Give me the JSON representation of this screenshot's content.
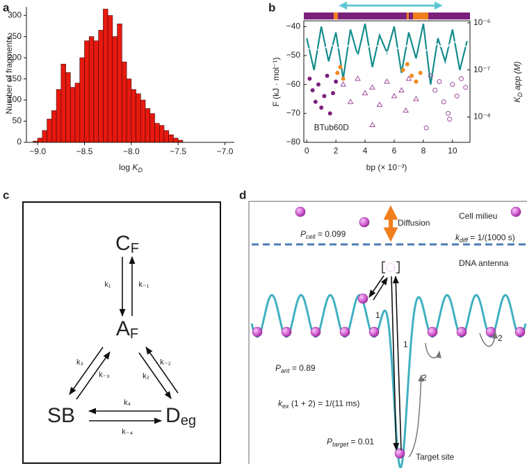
{
  "panel_labels": [
    "a",
    "b",
    "c",
    "d"
  ],
  "chart_data": [
    {
      "type": "histogram",
      "y_label": "Number of fragments",
      "x_label": {
        "text": "log ",
        "symbol": "K",
        "sub": "D"
      },
      "bins": [
        -9.05,
        -9.0,
        -8.95,
        -8.9,
        -8.85,
        -8.8,
        -8.75,
        -8.7,
        -8.65,
        -8.6,
        -8.55,
        -8.5,
        -8.45,
        -8.4,
        -8.35,
        -8.3,
        -8.25,
        -8.2,
        -8.15,
        -8.1,
        -8.05,
        -8.0,
        -7.95,
        -7.9,
        -7.85,
        -7.8,
        -7.75,
        -7.7,
        -7.65,
        -7.6,
        -7.55,
        -7.5,
        -7.45
      ],
      "counts": [
        3,
        10,
        28,
        55,
        75,
        125,
        185,
        165,
        130,
        140,
        200,
        240,
        250,
        240,
        265,
        315,
        300,
        250,
        280,
        190,
        150,
        125,
        115,
        100,
        80,
        68,
        45,
        40,
        28,
        18,
        10,
        5
      ],
      "color": "#e8190f",
      "xlim": [
        -9.12,
        -6.9
      ],
      "xticks": [
        {
          "value": -9.0,
          "label": "−9.0"
        },
        {
          "value": -8.5,
          "label": "−8.5"
        },
        {
          "value": -8.0,
          "label": "−8.0"
        },
        {
          "value": -7.5,
          "label": "−7.5"
        },
        {
          "value": -7.0,
          "label": "−7.0"
        }
      ],
      "ylim": [
        0,
        320
      ],
      "yticks": [
        0,
        50,
        100,
        150,
        200,
        250,
        300
      ]
    },
    {
      "type": "line",
      "x_label": "bp (× 10⁻³)",
      "y_label": "F (kJ · mol⁻¹)",
      "y2_label": {
        "symbol": "K",
        "sub": "D",
        "rest": " app (M)"
      },
      "annotation": "BTub60D",
      "xlim": [
        -0.2,
        11.2
      ],
      "xticks": [
        0,
        2,
        4,
        6,
        8,
        10
      ],
      "ylim": [
        -80,
        -38
      ],
      "yticks": [
        {
          "value": -40,
          "label": "−40"
        },
        {
          "value": -50,
          "label": "−50"
        },
        {
          "value": -60,
          "label": "−60"
        },
        {
          "value": -70,
          "label": "−70"
        },
        {
          "value": -80,
          "label": "−80"
        }
      ],
      "y2lim": [
        2.9e-09,
        1.1e-06
      ],
      "y2_log": true,
      "y2ticks": [
        {
          "value": 1e-06,
          "label": "10⁻⁶"
        },
        {
          "value": 1e-07,
          "label": "10⁻⁷"
        },
        {
          "value": 1e-08,
          "label": "10⁻⁸"
        }
      ],
      "series": [
        {
          "mark": "line",
          "color": "#138c8a",
          "x": [
            0,
            0.5,
            1,
            1.5,
            2,
            2.5,
            3,
            3.5,
            4,
            4.5,
            5,
            5.5,
            6,
            6.5,
            7,
            7.5,
            8,
            8.5,
            9,
            9.5,
            10,
            10.5,
            11
          ],
          "values": [
            -44,
            -55,
            -40,
            -52,
            -42,
            -58,
            -41,
            -50,
            -39,
            -54,
            -43,
            -49,
            -40,
            -56,
            -42,
            -51,
            -39,
            -60,
            -44,
            -52,
            -41,
            -55,
            -45
          ]
        },
        {
          "mark": "line",
          "color": "#ffffff",
          "x": [
            0,
            0.5,
            1,
            1.5,
            2,
            2.5,
            3,
            3.5,
            4,
            4.5,
            5,
            5.5,
            6,
            6.5,
            7,
            7.5,
            8,
            8.5,
            9,
            9.5,
            10,
            10.5,
            11
          ],
          "values": [
            -48,
            -47,
            -49,
            -46,
            -47,
            -48,
            -46,
            -50,
            -48,
            -46,
            -47,
            -49,
            -47,
            -48,
            -46,
            -52,
            -49,
            -47,
            -46,
            -48,
            -45,
            -46,
            -47
          ]
        },
        {
          "mark": "circle",
          "color": "#7b1f7b",
          "x": [
            0.2,
            0.4,
            0.6,
            0.8,
            1.0,
            1.2,
            1.4,
            1.6,
            1.8,
            2.0
          ],
          "values": [
            -58,
            -62,
            -66,
            -60,
            -68,
            -64,
            -57,
            -70,
            -63,
            -59
          ]
        },
        {
          "mark": "triangle",
          "color": "#9b4a9b",
          "x": [
            2.5,
            3,
            3.5,
            4,
            4.5,
            5,
            5.5,
            6,
            6.5,
            7,
            7.5,
            4.5,
            6.8
          ],
          "values": [
            -60,
            -66,
            -58,
            -63,
            -61,
            -67,
            -59,
            -64,
            -62,
            -58,
            -65,
            -74,
            -69
          ]
        },
        {
          "mark": "open-circle",
          "color": "#9b4a9b",
          "x": [
            8.5,
            8.8,
            9.1,
            9.4,
            9.7,
            10,
            10.3,
            10.6,
            10.9,
            8.2,
            9.8
          ],
          "values": [
            -57,
            -62,
            -59,
            -66,
            -70,
            -60,
            -64,
            -58,
            -61,
            -75,
            -72
          ]
        },
        {
          "mark": "circle",
          "color": "#f08a1c",
          "x": [
            2.1,
            2.3,
            2.5,
            6.6,
            6.9,
            7.2,
            7.5,
            7.8
          ],
          "values": [
            -56,
            -54,
            -58,
            -55,
            -53,
            -57,
            -59,
            -56
          ]
        }
      ]
    }
  ],
  "diagram_c": {
    "nodes": [
      {
        "base": "C",
        "sub": "F"
      },
      {
        "base": "A",
        "sub": "F"
      },
      {
        "base": "SB",
        "sub": ""
      },
      {
        "base": "D",
        "sub": "eg"
      }
    ],
    "rates": [
      "k₁",
      "k₋₁",
      "k₃",
      "k₋₃",
      "k₋₂",
      "k₂",
      "k₄",
      "k₋₄"
    ]
  },
  "diagram_d": {
    "cell_milieu": "Cell milieu",
    "dna_antenna": "DNA antenna",
    "diffusion": "Diffusion",
    "p_cell": {
      "symbol": "P",
      "sub": "cell",
      "rest": " = 0.099"
    },
    "k_diff": {
      "symbol": "k",
      "sub": "diff",
      "rest": " = 1/(1000 s)"
    },
    "p_ant": {
      "symbol": "P",
      "sub": "ant",
      "rest": " = 0.89"
    },
    "k_ex": {
      "symbol": "k",
      "sub": "ex",
      "rest": " (1 + 2) = 1/(11 ms)"
    },
    "p_target": {
      "symbol": "P",
      "sub": "target",
      "rest": " = 0.01"
    },
    "target_site": "Target site",
    "step_labels": [
      "1",
      "1",
      "2",
      "2"
    ]
  }
}
